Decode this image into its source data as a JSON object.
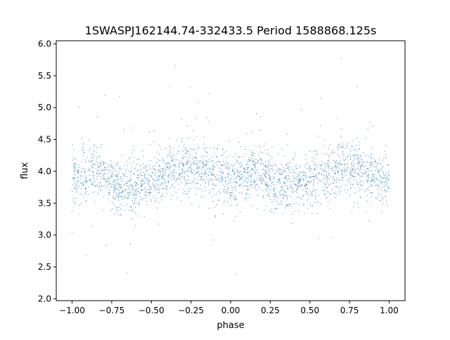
{
  "chart_data": {
    "type": "scatter",
    "title": "1SWASPJ162144.74-332433.5 Period 1588868.125s",
    "xlabel": "phase",
    "ylabel": "flux",
    "xlim": [
      -1.1,
      1.1
    ],
    "ylim": [
      1.97,
      6.05
    ],
    "xticks": [
      -1.0,
      -0.75,
      -0.5,
      -0.25,
      0.0,
      0.25,
      0.5,
      0.75,
      1.0
    ],
    "xtick_labels": [
      "−1.00",
      "−0.75",
      "−0.50",
      "−0.25",
      "0.00",
      "0.25",
      "0.50",
      "0.75",
      "1.00"
    ],
    "yticks": [
      2.0,
      2.5,
      3.0,
      3.5,
      4.0,
      4.5,
      5.0,
      5.5,
      6.0
    ],
    "ytick_labels": [
      "2.0",
      "2.5",
      "3.0",
      "3.5",
      "4.0",
      "4.5",
      "5.0",
      "5.5",
      "6.0"
    ],
    "grid": false,
    "legend": "none",
    "point_color": "#1f77b4",
    "description_of_distribution": {
      "phase_range": [
        -1.0,
        1.0
      ],
      "baseline_flux": 3.9,
      "typical_spread": 0.35,
      "profile": [
        {
          "phase": -1.0,
          "flux": 3.85
        },
        {
          "phase": -0.85,
          "flux": 4.05
        },
        {
          "phase": -0.7,
          "flux": 3.75
        },
        {
          "phase": -0.55,
          "flux": 3.8
        },
        {
          "phase": -0.4,
          "flux": 3.95
        },
        {
          "phase": -0.3,
          "flux": 4.1
        },
        {
          "phase": -0.15,
          "flux": 4.0
        },
        {
          "phase": 0.0,
          "flux": 3.85
        },
        {
          "phase": 0.15,
          "flux": 4.05
        },
        {
          "phase": 0.3,
          "flux": 3.75
        },
        {
          "phase": 0.45,
          "flux": 3.8
        },
        {
          "phase": 0.6,
          "flux": 3.95
        },
        {
          "phase": 0.7,
          "flux": 4.1
        },
        {
          "phase": 0.85,
          "flux": 4.0
        },
        {
          "phase": 1.0,
          "flux": 3.85
        }
      ]
    }
  }
}
